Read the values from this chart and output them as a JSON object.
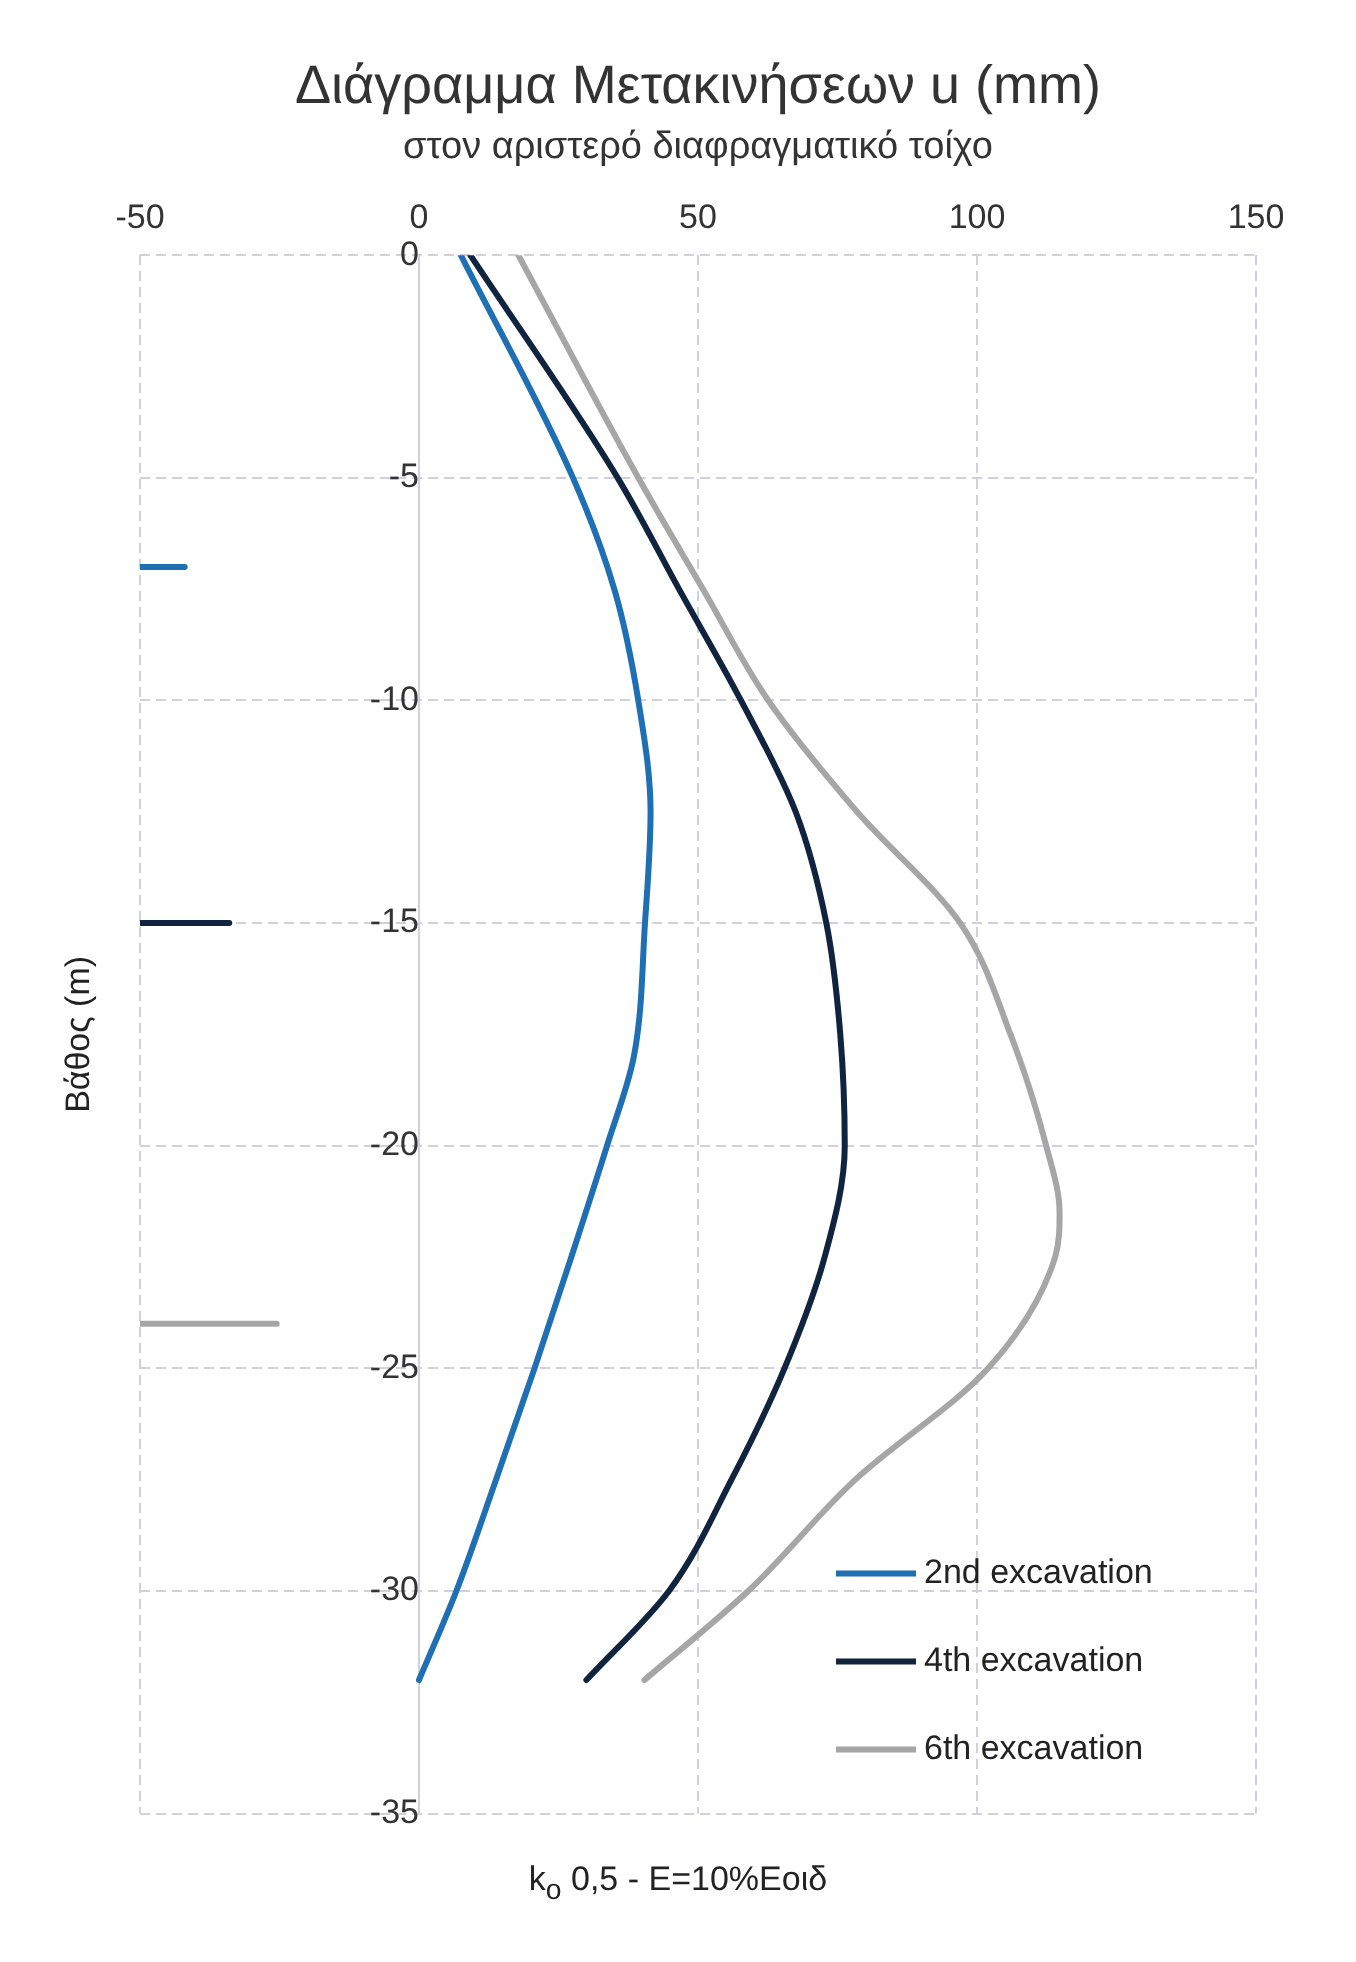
{
  "chart_data": {
    "type": "line",
    "title": "Διάγραμμα Μετακινήσεων u (mm)",
    "subtitle": "στον αριστερό διαφραγματικό τοίχο",
    "xlabel": "k$_{o}$ 0,5 - E=10%Εοιδ",
    "ylabel": "Βάθος (m)",
    "xlim": [
      -50,
      150
    ],
    "xticks": [
      -50,
      0,
      50,
      100,
      150
    ],
    "ylim": [
      -35,
      0
    ],
    "yticks": [
      -35,
      -30,
      -25,
      -20,
      -15,
      -10,
      -5,
      0
    ],
    "grid": true,
    "legend": "bottom right",
    "marker": "none",
    "series": [
      {
        "name": "2nd excavation",
        "color": "#1f6fb5",
        "x": [
          7.5,
          27.6,
          35,
          39.3,
          41.5,
          40.5,
          38.5,
          33.7,
          27.3,
          20.7,
          13.8,
          6.7,
          0
        ],
        "values": [
          0,
          -5,
          -7.5,
          -10,
          -12.5,
          -15,
          -18,
          -20,
          -22.5,
          -25,
          -27.5,
          -30,
          -32
        ]
      },
      {
        "name": "4th excavation",
        "color": "#10243f",
        "x": [
          9.2,
          35.6,
          46.6,
          57.7,
          67.5,
          73,
          75.5,
          76.3,
          72.7,
          65.5,
          56,
          44.8,
          30
        ],
        "values": [
          0,
          -5,
          -7.5,
          -10,
          -12.5,
          -15,
          -17.5,
          -20,
          -22.5,
          -25,
          -27.5,
          -30,
          -32
        ]
      },
      {
        "name": "6th excavation",
        "color": "#a6a6a6",
        "x": [
          17.8,
          39.3,
          50.9,
          62.6,
          78.5,
          97,
          106,
          112.4,
          114.8,
          114,
          102,
          78.2,
          59,
          40.4
        ],
        "values": [
          0,
          -5,
          -7.5,
          -10,
          -12.5,
          -15,
          -17.5,
          -20,
          -21.5,
          -22.5,
          -25,
          -27.5,
          -30,
          -32
        ]
      },
      {
        "color": "#1f6fb5",
        "x": [
          -50,
          -42
        ],
        "values": [
          -7,
          -7
        ]
      },
      {
        "color": "#10243f",
        "x": [
          -50,
          -34
        ],
        "values": [
          -15,
          -15
        ]
      },
      {
        "color": "#a6a6a6",
        "x": [
          -50,
          -25.5
        ],
        "values": [
          -24,
          -24
        ]
      }
    ]
  }
}
